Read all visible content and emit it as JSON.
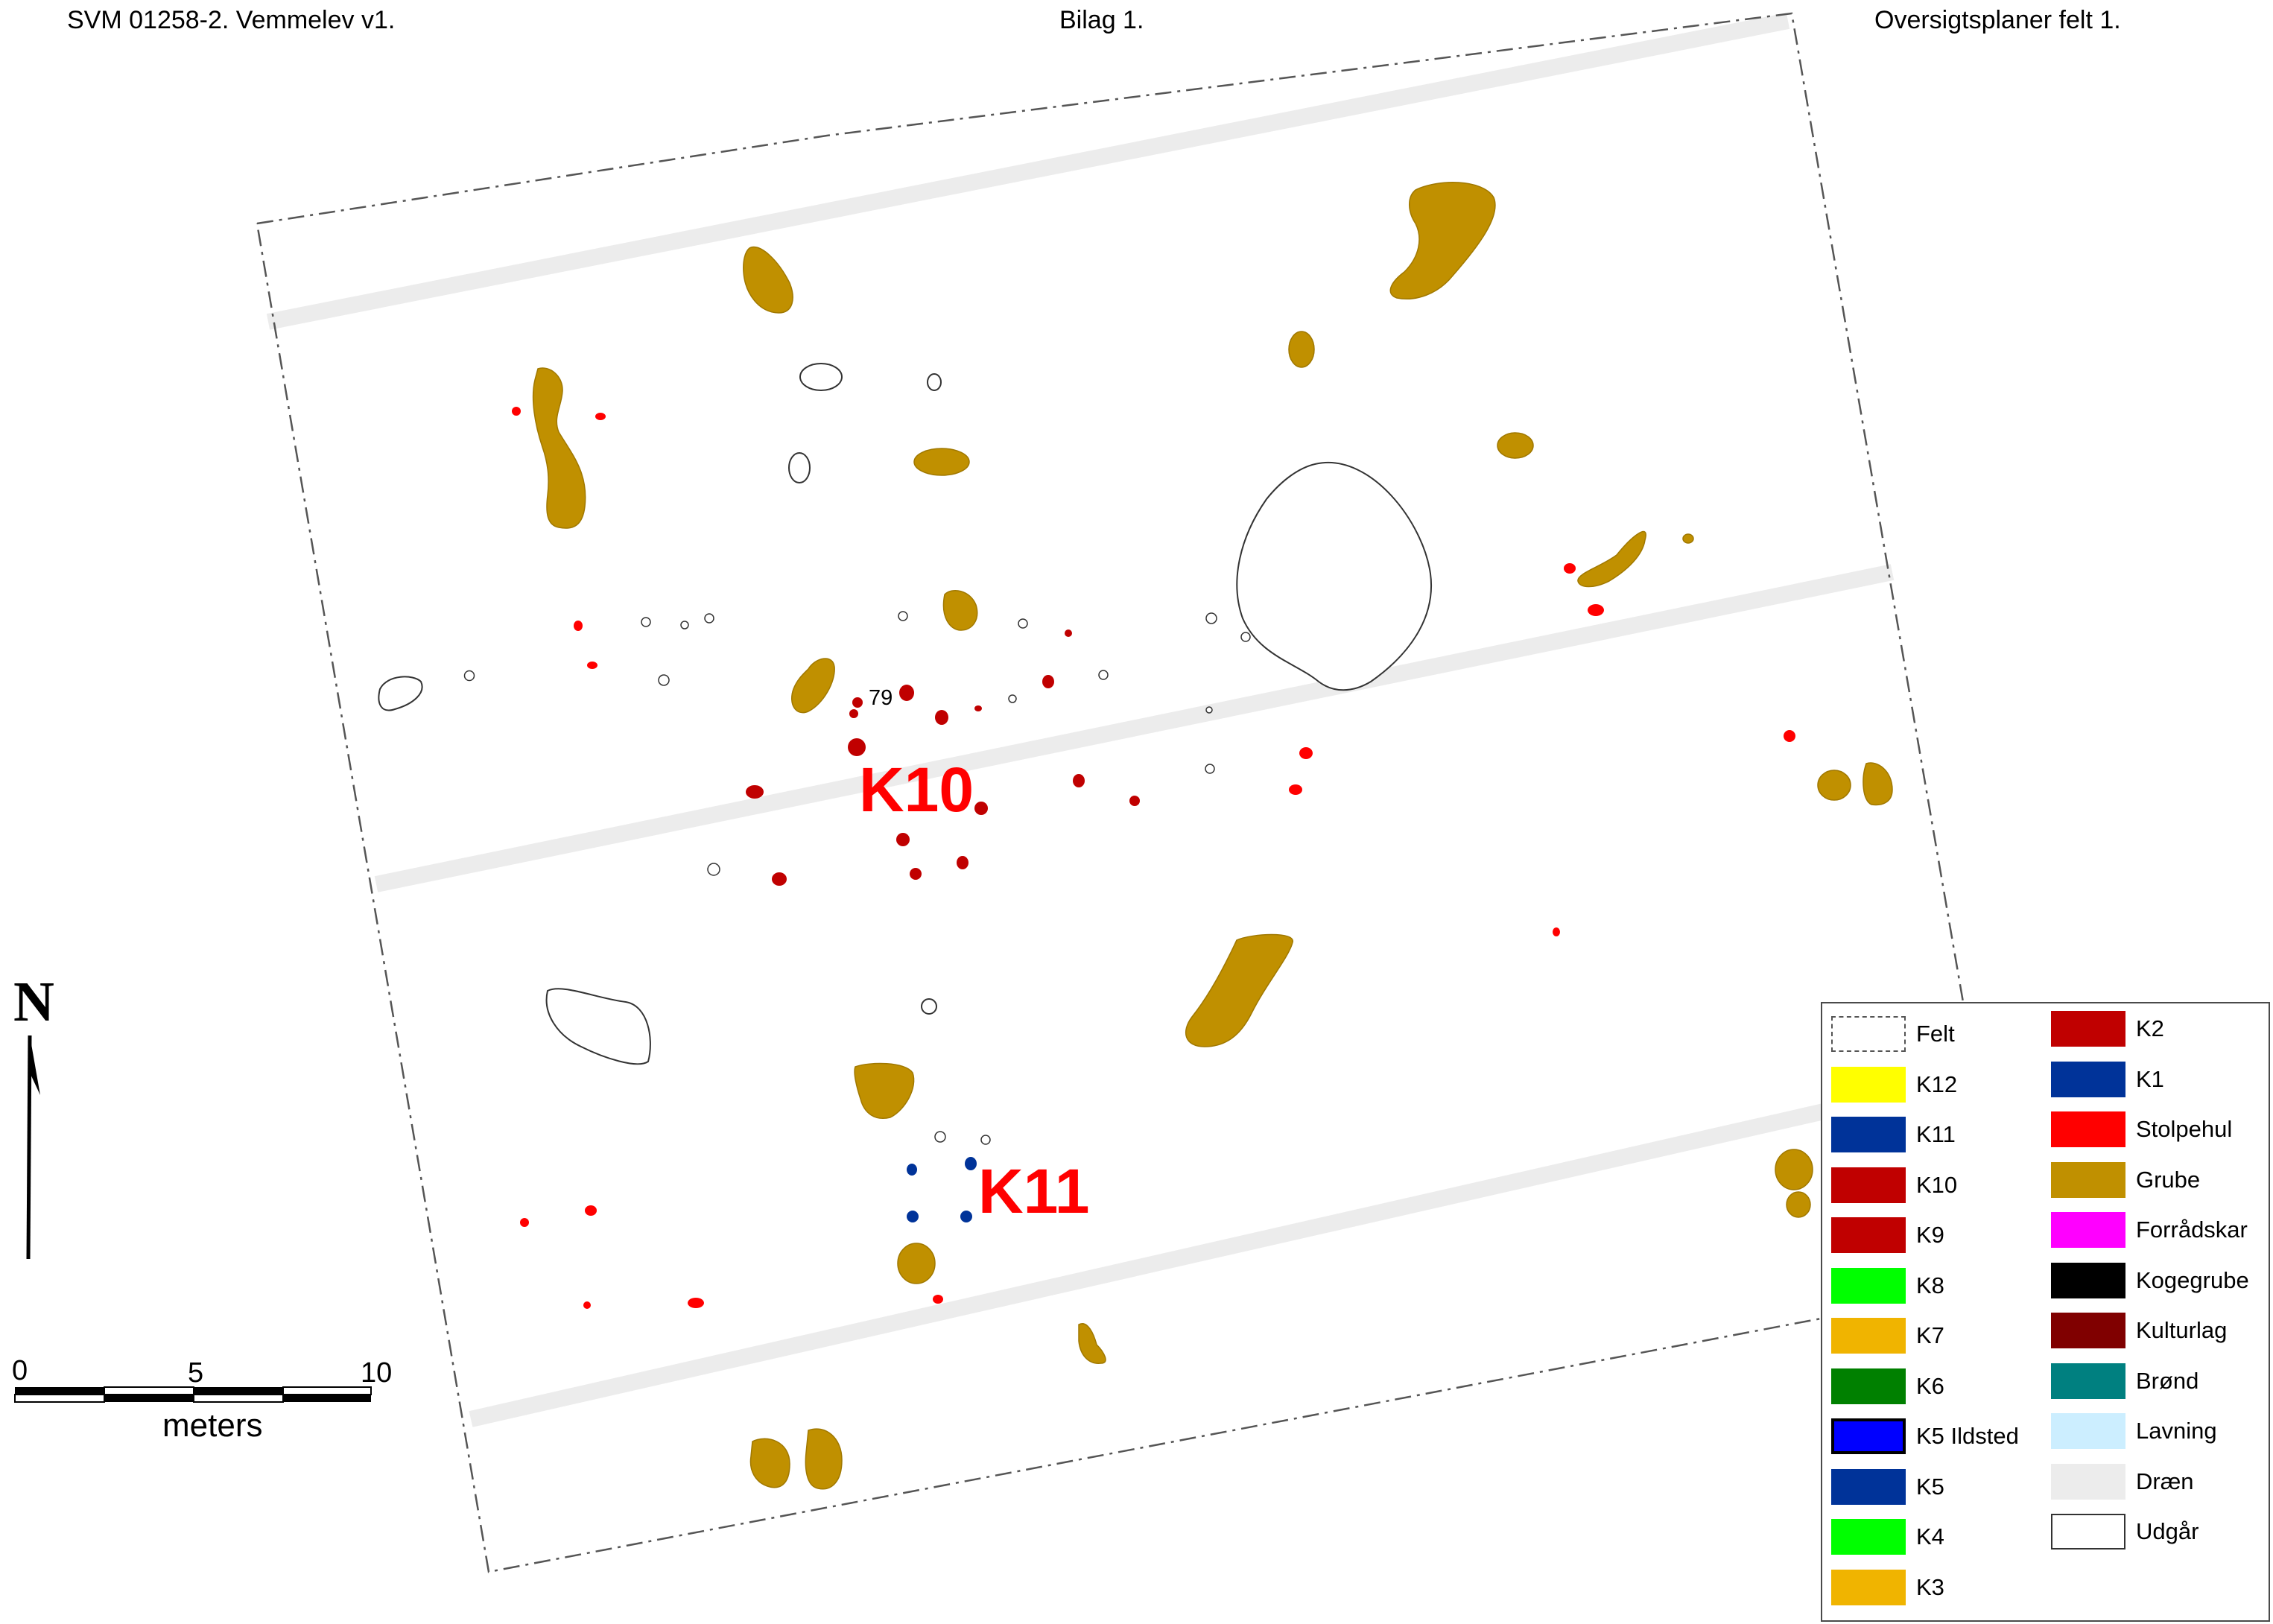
{
  "header": {
    "left": "SVM 01258-2. Vemmelev v1.",
    "center": "Bilag 1.",
    "right": "Oversigtsplaner felt 1."
  },
  "map_labels": {
    "k10": "K10",
    "k11": "K11",
    "feature_79": "79"
  },
  "north_arrow": {
    "label": "N"
  },
  "scale_bar": {
    "tick_0": "0",
    "tick_5": "5",
    "tick_10": "10",
    "unit": "meters"
  },
  "legend": {
    "items": [
      {
        "label": "Felt",
        "color": "#ffffff",
        "style": "dash-dot"
      },
      {
        "label": "K12",
        "color": "#ffff00"
      },
      {
        "label": "K11",
        "color": "#003399"
      },
      {
        "label": "K10",
        "color": "#c00000"
      },
      {
        "label": "K9",
        "color": "#c00000"
      },
      {
        "label": "K8",
        "color": "#00ff00"
      },
      {
        "label": "K7",
        "color": "#f0b400"
      },
      {
        "label": "K6",
        "color": "#008000"
      },
      {
        "label": "K5 Ildsted",
        "color": "#0000ff",
        "style": "bold-border"
      },
      {
        "label": "K5",
        "color": "#003399"
      },
      {
        "label": "K4",
        "color": "#00ff00"
      },
      {
        "label": "K3",
        "color": "#f0b400"
      },
      {
        "label": "K2",
        "color": "#c00000"
      },
      {
        "label": "K1",
        "color": "#003399"
      },
      {
        "label": "Stolpehul",
        "color": "#ff0000"
      },
      {
        "label": "Grube",
        "color": "#c09000"
      },
      {
        "label": "Forrådskar",
        "color": "#ff00ff"
      },
      {
        "label": "Kogegrube",
        "color": "#000000"
      },
      {
        "label": "Kulturlag",
        "color": "#800000"
      },
      {
        "label": "Brønd",
        "color": "#008080"
      },
      {
        "label": "Lavning",
        "color": "#cceeff"
      },
      {
        "label": "Dræn",
        "color": "#ececec"
      },
      {
        "label": "Udgår",
        "color": "#ffffff",
        "style": "outline"
      }
    ]
  },
  "colors": {
    "grube": "#c09000",
    "stolpehul": "#ff0000",
    "k10": "#c00000",
    "k11": "#003399",
    "draen": "#ececec",
    "label_red": "#ff0000"
  }
}
